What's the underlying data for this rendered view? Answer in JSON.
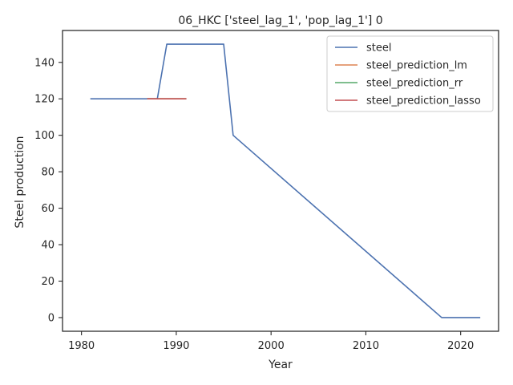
{
  "chart_data": {
    "type": "line",
    "title": "06_HKC ['steel_lag_1', 'pop_lag_1'] 0",
    "xlabel": "Year",
    "ylabel": "Steel production",
    "xlim": [
      1978,
      2024
    ],
    "ylim": [
      -7.5,
      157.5
    ],
    "xticks": [
      1980,
      1990,
      2000,
      2010,
      2020
    ],
    "yticks": [
      0,
      20,
      40,
      60,
      80,
      100,
      120,
      140
    ],
    "grid": false,
    "legend_position": "top-right",
    "series": [
      {
        "name": "steel",
        "color": "#4c72b0",
        "x": [
          1981,
          1988,
          1989,
          1995,
          1996,
          2018,
          2022
        ],
        "y": [
          120,
          120,
          150,
          150,
          100,
          0,
          0
        ]
      },
      {
        "name": "steel_prediction_lm",
        "color": "#dd8452",
        "x": [
          1987,
          1991
        ],
        "y": [
          120,
          120
        ]
      },
      {
        "name": "steel_prediction_rr",
        "color": "#55a868",
        "x": [
          1987,
          1991
        ],
        "y": [
          120,
          120
        ]
      },
      {
        "name": "steel_prediction_lasso",
        "color": "#c44e52",
        "x": [
          1987,
          1991
        ],
        "y": [
          120,
          120
        ]
      }
    ]
  }
}
